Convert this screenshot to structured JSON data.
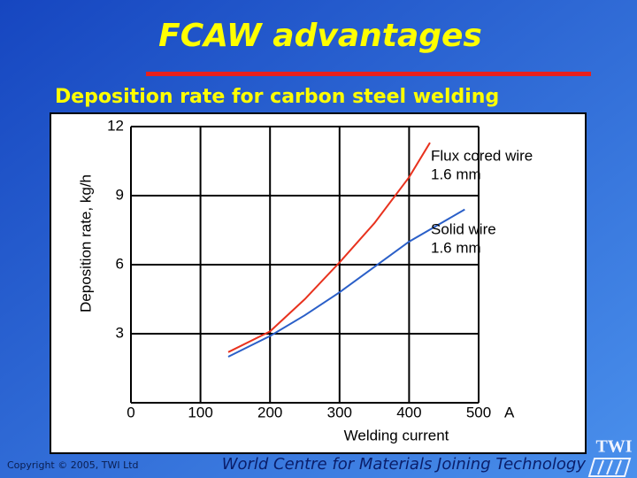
{
  "slide": {
    "title": "FCAW advantages",
    "subtitle": "Deposition rate for carbon steel welding",
    "copyright": "Copyright © 2005, TWI Ltd",
    "tagline": "World Centre for Materials Joining Technology",
    "logo": "TWI"
  },
  "chart_data": {
    "type": "line",
    "x_label": "Welding current",
    "x_unit": "A",
    "y_label": "Deposition rate, kg/h",
    "xlim": [
      0,
      500
    ],
    "xticks": [
      0,
      100,
      200,
      300,
      400,
      500
    ],
    "ylim": [
      0,
      12
    ],
    "yticks": [
      3,
      6,
      9,
      12
    ],
    "grid": true,
    "series": [
      {
        "label_lines": [
          "Flux cored wire",
          "1.6 mm"
        ],
        "color": "#e8321e",
        "x": [
          140,
          200,
          250,
          300,
          350,
          400,
          430
        ],
        "values": [
          2.2,
          3.1,
          4.5,
          6.1,
          7.8,
          9.8,
          11.3
        ]
      },
      {
        "label_lines": [
          "Solid wire",
          "1.6 mm"
        ],
        "color": "#2a5fc8",
        "x": [
          140,
          200,
          250,
          300,
          350,
          400,
          480
        ],
        "values": [
          2.0,
          2.9,
          3.8,
          4.8,
          5.9,
          7.0,
          8.4
        ]
      }
    ]
  }
}
